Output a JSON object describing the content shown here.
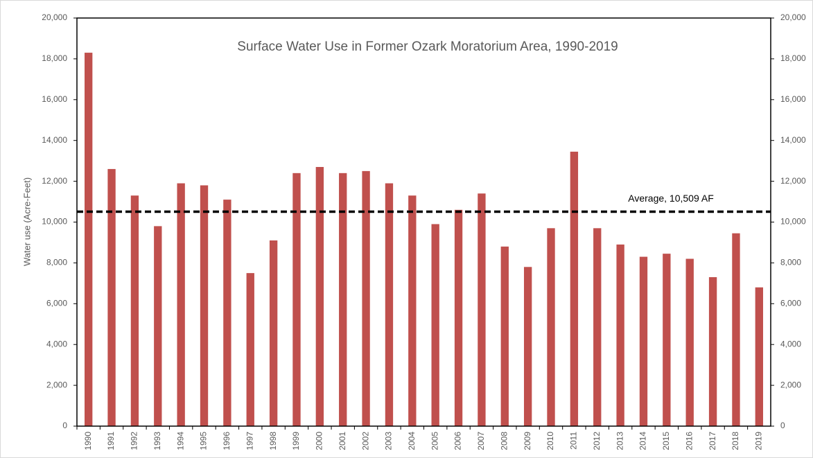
{
  "chart_data": {
    "type": "bar",
    "title": "Surface Water Use in Former Ozark Moratorium Area, 1990-2019",
    "y_label": "Water use (Acre-Feet)",
    "categories": [
      "1990",
      "1991",
      "1992",
      "1993",
      "1994",
      "1995",
      "1996",
      "1997",
      "1998",
      "1999",
      "2000",
      "2001",
      "2002",
      "2003",
      "2004",
      "2005",
      "2006",
      "2007",
      "2008",
      "2009",
      "2010",
      "2011",
      "2012",
      "2013",
      "2014",
      "2015",
      "2016",
      "2017",
      "2018",
      "2019"
    ],
    "values": [
      18300,
      12600,
      11300,
      9800,
      11900,
      11800,
      11100,
      7500,
      9100,
      12400,
      12700,
      12400,
      12500,
      11900,
      11300,
      9900,
      10600,
      11400,
      8800,
      7800,
      9700,
      13450,
      9700,
      8900,
      8300,
      8450,
      8200,
      7300,
      9450,
      6800
    ],
    "color": "#c0504d",
    "ylim": [
      0,
      20000
    ],
    "yticks": [
      0,
      {
        "value": 2000,
        "label": "2,000"
      },
      {
        "value": 4000,
        "label": "4,000"
      },
      {
        "value": 6000,
        "label": "6,000"
      },
      {
        "value": 8000,
        "label": "8,000"
      },
      {
        "value": 10000,
        "label": "10,000"
      },
      {
        "value": 12000,
        "label": "12,000"
      },
      {
        "value": 14000,
        "label": "14,000"
      },
      {
        "value": 16000,
        "label": "16,000"
      },
      {
        "value": 18000,
        "label": "18,000"
      },
      {
        "value": 20000,
        "label": "20,000"
      }
    ],
    "y2lim": [
      0,
      20000
    ],
    "y2ticks": [
      0,
      {
        "value": 2000,
        "label": "2,000"
      },
      {
        "value": 4000,
        "label": "4,000"
      },
      {
        "value": 6000,
        "label": "6,000"
      },
      {
        "value": 8000,
        "label": "8,000"
      },
      {
        "value": 10000,
        "label": "10,000"
      },
      {
        "value": 12000,
        "label": "12,000"
      },
      {
        "value": 14000,
        "label": "14,000"
      },
      {
        "value": 16000,
        "label": "16,000"
      },
      {
        "value": 18000,
        "label": "18,000"
      },
      {
        "value": 20000,
        "label": "20,000"
      }
    ],
    "average": {
      "value": 10509,
      "label": "Average, 10,509 AF"
    },
    "grid": false
  }
}
